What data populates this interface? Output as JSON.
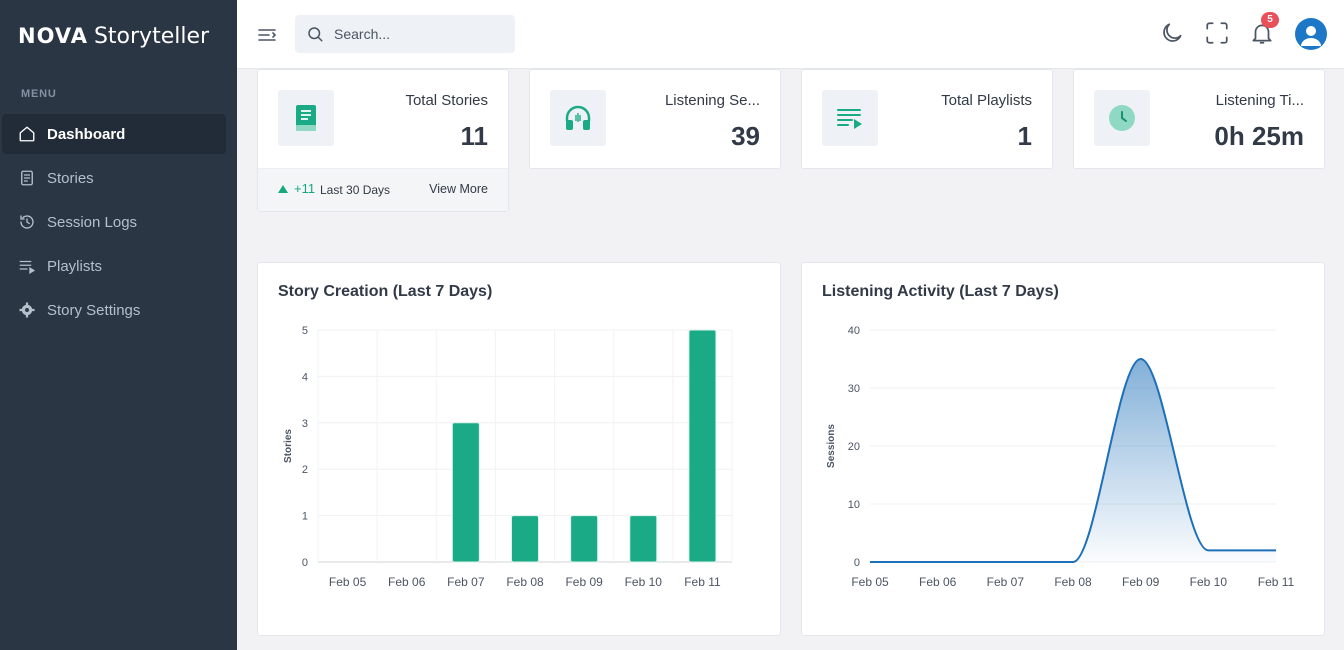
{
  "app": {
    "brand_bold": "NOVA",
    "brand_rest": "Storyteller"
  },
  "sidebar": {
    "menu_title": "MENU",
    "items": [
      {
        "label": "Dashboard",
        "icon": "home-icon",
        "active": true
      },
      {
        "label": "Stories",
        "icon": "book-icon"
      },
      {
        "label": "Session Logs",
        "icon": "history-icon"
      },
      {
        "label": "Playlists",
        "icon": "playlist-icon"
      },
      {
        "label": "Story Settings",
        "icon": "gear-icon"
      }
    ]
  },
  "topbar": {
    "search_placeholder": "Search...",
    "notification_count": "5"
  },
  "stats": [
    {
      "label": "Total Stories",
      "value": "11",
      "icon": "book-icon",
      "trend": "+11",
      "trend_label": "Last 30 Days",
      "link": "View More"
    },
    {
      "label": "Listening Se...",
      "value": "39",
      "icon": "headphones-icon"
    },
    {
      "label": "Total Playlists",
      "value": "1",
      "icon": "playlist-play-icon"
    },
    {
      "label": "Listening Ti...",
      "value": "0h 25m",
      "icon": "clock-icon"
    }
  ],
  "colors": {
    "accent": "#1aab86",
    "line": "#1c6fb8",
    "sidebar": "#2b3644"
  },
  "chart_data": [
    {
      "type": "bar",
      "title": "Story Creation (Last 7 Days)",
      "ylabel": "Stories",
      "xlabel": "",
      "categories": [
        "Feb 05",
        "Feb 06",
        "Feb 07",
        "Feb 08",
        "Feb 09",
        "Feb 10",
        "Feb 11"
      ],
      "values": [
        0,
        0,
        3,
        1,
        1,
        1,
        5
      ],
      "ylim": [
        0,
        5
      ],
      "yticks": [
        0,
        1,
        2,
        3,
        4,
        5
      ]
    },
    {
      "type": "area",
      "title": "Listening Activity (Last 7 Days)",
      "ylabel": "Sessions",
      "xlabel": "",
      "categories": [
        "Feb 05",
        "Feb 06",
        "Feb 07",
        "Feb 08",
        "Feb 09",
        "Feb 10",
        "Feb 11"
      ],
      "values": [
        0,
        0,
        0,
        0,
        35,
        2,
        2
      ],
      "ylim": [
        0,
        40
      ],
      "yticks": [
        0,
        10,
        20,
        30,
        40
      ]
    }
  ]
}
